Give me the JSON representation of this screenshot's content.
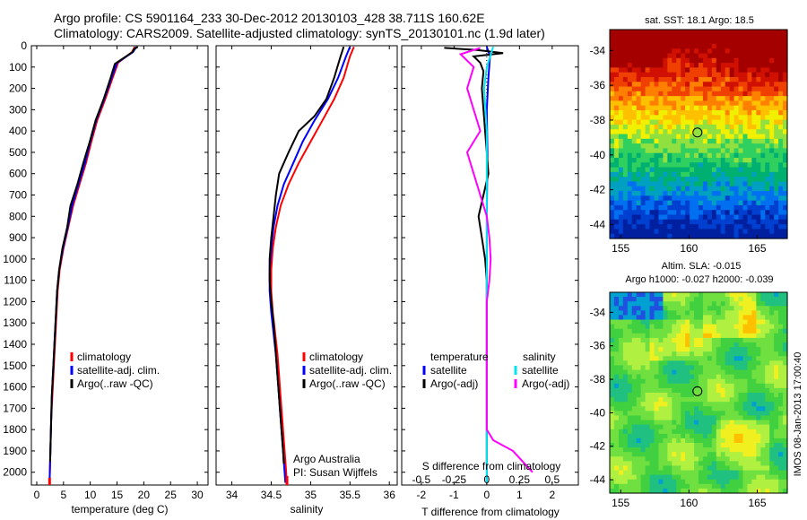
{
  "header": {
    "line1": "Argo profile: CS 5901164_233 30-Dec-2012 20130103_428 38.711S 160.62E",
    "line2": "Climatology: CARS2009. Satellite-adjusted climatology: synTS_20130101.nc (1.9d later)"
  },
  "side_label": "IMOS 08-Jan-2013 17:00:40",
  "chart_data": [
    {
      "id": "temperature",
      "type": "line",
      "xlabel": "temperature (deg C)",
      "xlim": [
        -1,
        32
      ],
      "xticks": [
        0,
        5,
        10,
        15,
        20,
        25,
        30
      ],
      "ylim": [
        2060,
        0
      ],
      "yticks": [
        0,
        100,
        200,
        300,
        400,
        500,
        600,
        700,
        800,
        900,
        1000,
        1100,
        1200,
        1300,
        1400,
        1500,
        1600,
        1700,
        1800,
        1900,
        2000
      ],
      "legend": [
        "climatology",
        "satellite-adj. clim.",
        "Argo(..raw -QC)"
      ],
      "colors": {
        "climatology": "#ff0000",
        "satellite": "#0000ff",
        "argo": "#000000"
      },
      "series": [
        {
          "name": "climatology",
          "color": "#ff0000",
          "points": [
            [
              18.3,
              5
            ],
            [
              17.8,
              30
            ],
            [
              15.2,
              80
            ],
            [
              14.2,
              150
            ],
            [
              12.8,
              250
            ],
            [
              11.3,
              350
            ],
            [
              10.2,
              450
            ],
            [
              9.2,
              550
            ],
            [
              8.0,
              650
            ],
            [
              6.8,
              750
            ],
            [
              5.9,
              850
            ],
            [
              5.0,
              950
            ],
            [
              4.3,
              1050
            ],
            [
              3.9,
              1150
            ],
            [
              3.7,
              1250
            ],
            [
              3.5,
              1350
            ],
            [
              3.3,
              1450
            ],
            [
              3.1,
              1550
            ],
            [
              2.9,
              1650
            ],
            [
              2.7,
              1750
            ],
            [
              2.6,
              1850
            ],
            [
              2.5,
              1950
            ],
            [
              2.4,
              2050
            ]
          ]
        },
        {
          "name": "satellite-adj. clim.",
          "color": "#0000ff",
          "points": [
            [
              18.6,
              5
            ],
            [
              18.0,
              30
            ],
            [
              15.0,
              80
            ],
            [
              14.0,
              150
            ],
            [
              12.6,
              250
            ],
            [
              11.1,
              350
            ],
            [
              10.0,
              450
            ],
            [
              9.0,
              550
            ],
            [
              7.8,
              650
            ],
            [
              6.6,
              750
            ],
            [
              5.8,
              850
            ],
            [
              4.9,
              950
            ],
            [
              4.2,
              1050
            ],
            [
              3.8,
              1150
            ],
            [
              3.6,
              1250
            ],
            [
              3.4,
              1350
            ],
            [
              3.2,
              1450
            ],
            [
              3.0,
              1550
            ],
            [
              2.8,
              1650
            ],
            [
              2.7,
              1750
            ],
            [
              2.6,
              1850
            ],
            [
              2.5,
              1950
            ],
            [
              2.4,
              2050
            ]
          ]
        },
        {
          "name": "Argo(..raw -QC)",
          "color": "#000000",
          "points": [
            [
              18.9,
              5
            ],
            [
              18.2,
              15
            ],
            [
              17.9,
              30
            ],
            [
              14.6,
              85
            ],
            [
              13.8,
              150
            ],
            [
              12.5,
              250
            ],
            [
              11.0,
              350
            ],
            [
              9.9,
              450
            ],
            [
              8.7,
              550
            ],
            [
              7.6,
              650
            ],
            [
              6.3,
              750
            ],
            [
              5.7,
              850
            ],
            [
              4.8,
              950
            ],
            [
              4.2,
              1050
            ],
            [
              3.8,
              1150
            ],
            [
              3.6,
              1250
            ],
            [
              3.4,
              1350
            ],
            [
              3.2,
              1450
            ],
            [
              3.0,
              1550
            ],
            [
              2.8,
              1650
            ],
            [
              2.7,
              1750
            ],
            [
              2.6,
              1850
            ],
            [
              2.5,
              1950
            ]
          ]
        }
      ]
    },
    {
      "id": "salinity",
      "type": "line",
      "xlabel": "salinity",
      "xlim": [
        33.8,
        36.1
      ],
      "xticks": [
        34,
        34.5,
        35,
        35.5,
        36
      ],
      "ylim": [
        2060,
        0
      ],
      "legend": [
        "climatology",
        "satellite-adj. clim.",
        "Argo(..raw -QC)"
      ],
      "annotation": [
        "Argo Australia",
        "PI: Susan Wijffels"
      ],
      "series": [
        {
          "name": "climatology",
          "color": "#ff0000",
          "points": [
            [
              35.55,
              5
            ],
            [
              35.5,
              50
            ],
            [
              35.42,
              150
            ],
            [
              35.3,
              250
            ],
            [
              35.15,
              350
            ],
            [
              35.0,
              450
            ],
            [
              34.85,
              550
            ],
            [
              34.72,
              650
            ],
            [
              34.62,
              750
            ],
            [
              34.56,
              850
            ],
            [
              34.52,
              950
            ],
            [
              34.5,
              1050
            ],
            [
              34.5,
              1150
            ],
            [
              34.52,
              1250
            ],
            [
              34.55,
              1350
            ],
            [
              34.58,
              1450
            ],
            [
              34.6,
              1550
            ],
            [
              34.62,
              1650
            ],
            [
              34.64,
              1750
            ],
            [
              34.66,
              1850
            ],
            [
              34.68,
              1950
            ],
            [
              34.7,
              2050
            ]
          ]
        },
        {
          "name": "satellite-adj. clim.",
          "color": "#0000ff",
          "points": [
            [
              35.5,
              5
            ],
            [
              35.45,
              50
            ],
            [
              35.35,
              150
            ],
            [
              35.22,
              250
            ],
            [
              35.05,
              350
            ],
            [
              34.9,
              450
            ],
            [
              34.78,
              550
            ],
            [
              34.66,
              650
            ],
            [
              34.58,
              750
            ],
            [
              34.53,
              850
            ],
            [
              34.5,
              950
            ],
            [
              34.48,
              1050
            ],
            [
              34.48,
              1150
            ],
            [
              34.5,
              1250
            ],
            [
              34.53,
              1350
            ],
            [
              34.56,
              1450
            ],
            [
              34.58,
              1550
            ],
            [
              34.6,
              1650
            ],
            [
              34.62,
              1750
            ],
            [
              34.64,
              1850
            ],
            [
              34.66,
              1950
            ],
            [
              34.68,
              2050
            ]
          ]
        },
        {
          "name": "Argo(..raw -QC)",
          "color": "#000000",
          "points": [
            [
              35.42,
              5
            ],
            [
              35.38,
              50
            ],
            [
              35.3,
              150
            ],
            [
              35.2,
              250
            ],
            [
              35.05,
              330
            ],
            [
              34.85,
              400
            ],
            [
              34.72,
              500
            ],
            [
              34.6,
              600
            ],
            [
              34.56,
              700
            ],
            [
              34.53,
              800
            ],
            [
              34.5,
              900
            ],
            [
              34.48,
              1000
            ],
            [
              34.48,
              1100
            ],
            [
              34.5,
              1200
            ],
            [
              34.53,
              1300
            ],
            [
              34.55,
              1400
            ],
            [
              34.57,
              1500
            ],
            [
              34.59,
              1600
            ],
            [
              34.61,
              1700
            ],
            [
              34.63,
              1800
            ],
            [
              34.65,
              1900
            ],
            [
              34.66,
              1960
            ]
          ]
        }
      ]
    },
    {
      "id": "difference",
      "type": "line",
      "xlabel": "T difference from climatology",
      "xlim": [
        -2.6,
        2.8
      ],
      "xticks": [
        -2,
        -1,
        0,
        1,
        2
      ],
      "top_label": "S difference from climatology",
      "top_ticks": [
        -0.5,
        -0.25,
        0,
        0.25,
        0.5
      ],
      "top_xlim": [
        -0.65,
        0.7
      ],
      "ylim": [
        2060,
        0
      ],
      "legend_left": [
        "temperature",
        "satellite",
        "Argo(-adj)"
      ],
      "legend_right": [
        "salinity",
        "satellite",
        "Argo(-adj)"
      ],
      "series": [
        {
          "name": "T satellite",
          "color": "#0000ff",
          "points": [
            [
              0,
              5
            ],
            [
              0.1,
              50
            ],
            [
              0.05,
              150
            ],
            [
              0.0,
              300
            ],
            [
              0.02,
              500
            ],
            [
              0.0,
              800
            ],
            [
              0.0,
              1200
            ],
            [
              0.0,
              1600
            ],
            [
              0.0,
              2050
            ]
          ]
        },
        {
          "name": "T Argo(-adj)",
          "color": "#000000",
          "points": [
            [
              -1.3,
              10
            ],
            [
              -0.3,
              20
            ],
            [
              0.5,
              35
            ],
            [
              -0.4,
              50
            ],
            [
              -0.2,
              80
            ],
            [
              -0.1,
              120
            ],
            [
              -0.15,
              200
            ],
            [
              -0.1,
              300
            ],
            [
              -0.05,
              400
            ],
            [
              0.0,
              500
            ],
            [
              0.05,
              600
            ],
            [
              -0.1,
              700
            ],
            [
              -0.25,
              800
            ],
            [
              -0.15,
              900
            ],
            [
              -0.05,
              1000
            ],
            [
              0.0,
              1100
            ],
            [
              0.0,
              1200
            ],
            [
              0.0,
              1400
            ],
            [
              0.0,
              1600
            ],
            [
              0.0,
              1800
            ],
            [
              0.0,
              1950
            ]
          ]
        },
        {
          "name": "S satellite",
          "color": "#00e5ee",
          "points": [
            [
              0.05,
              5
            ],
            [
              0.0,
              100
            ],
            [
              -0.02,
              200
            ],
            [
              0.0,
              400
            ],
            [
              0.0,
              800
            ],
            [
              0.0,
              1200
            ],
            [
              0.0,
              1600
            ],
            [
              0.0,
              2050
            ]
          ]
        },
        {
          "name": "S Argo(-adj)",
          "color": "#ff00ff",
          "points": [
            [
              -0.05,
              10
            ],
            [
              -0.2,
              40
            ],
            [
              -0.1,
              100
            ],
            [
              -0.15,
              200
            ],
            [
              -0.1,
              300
            ],
            [
              -0.05,
              400
            ],
            [
              -0.15,
              500
            ],
            [
              -0.1,
              600
            ],
            [
              -0.05,
              700
            ],
            [
              0.0,
              800
            ],
            [
              0.02,
              900
            ],
            [
              0.03,
              1000
            ],
            [
              0.02,
              1100
            ],
            [
              0.0,
              1200
            ],
            [
              0.0,
              1400
            ],
            [
              0.0,
              1600
            ],
            [
              0.0,
              1800
            ],
            [
              0.05,
              1850
            ],
            [
              0.2,
              1900
            ],
            [
              0.35,
              2000
            ]
          ]
        }
      ]
    },
    {
      "id": "sst_map",
      "type": "heatmap",
      "title": "sat. SST: 18.1  Argo: 18.5",
      "xticks": [
        155,
        160,
        165
      ],
      "yticks": [
        -34,
        -36,
        -38,
        -40,
        -42,
        -44
      ],
      "xlim": [
        154.2,
        167.2
      ],
      "ylim": [
        -44.8,
        -32.8
      ],
      "marker": {
        "lon": 160.62,
        "lat": -38.711
      },
      "colors_by_band": [
        "#a50000",
        "#e02000",
        "#ff9000",
        "#ffe000",
        "#70e060",
        "#00b070",
        "#00a0d0",
        "#0050e0",
        "#0020a0"
      ]
    },
    {
      "id": "sla_map",
      "type": "heatmap",
      "title": "Altim. SLA: -0.015",
      "subtitle": "Argo h1000: -0.027 h2000: -0.039",
      "xticks": [
        155,
        160,
        165
      ],
      "yticks": [
        -34,
        -36,
        -38,
        -40,
        -42,
        -44
      ],
      "xlim": [
        154.2,
        167.2
      ],
      "ylim": [
        -44.8,
        -32.8
      ],
      "marker": {
        "lon": 160.62,
        "lat": -38.711
      }
    }
  ]
}
